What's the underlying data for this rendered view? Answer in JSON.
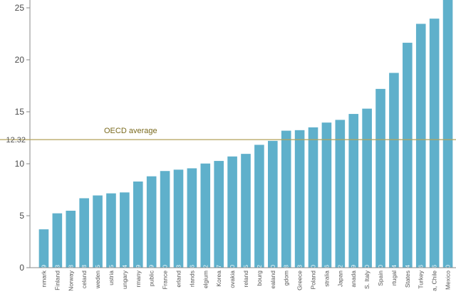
{
  "chart_data": {
    "type": "bar",
    "title": "",
    "xlabel": "",
    "ylabel": "",
    "ylim": [
      0,
      26
    ],
    "yticks": [
      0,
      5,
      10,
      15,
      20,
      25
    ],
    "grid": false,
    "bar_color": "#5fb0cb",
    "reference_line": {
      "label": "OECD average",
      "value": 12.32,
      "value_label": "12.32",
      "color": "#b3a25a"
    },
    "categories": [
      "Denmark",
      "Finland",
      "Norway",
      "Iceland",
      "Sweden",
      "Austria",
      "Hungary",
      "Germany",
      "Czech Republic",
      "France",
      "Switzerland",
      "Netherlands",
      "Belgium",
      "Korea",
      "Slovakia",
      "Ireland",
      "Luxembourg",
      "New Zealand",
      "United Kingdom",
      "Greece",
      "Poland",
      "Australia",
      "Japan",
      "Canada",
      "U.S. Italy",
      "Spain",
      "Portugal",
      "United States",
      "Turkey",
      "Chile",
      "Mexico"
    ],
    "visible_category_text": [
      "nmark",
      "Finland",
      "Norway",
      "celand",
      "weden",
      "ustria",
      "ungary",
      "rmany",
      "public",
      "France",
      "erland",
      "rlands",
      "elgium",
      "Korea",
      "ovakia",
      "reland",
      "bourg",
      "ealand",
      "gdom",
      "Greece",
      "Poland",
      "stralia",
      "Japan",
      "anada",
      "S. Italy",
      "Spain",
      "rtugal",
      "States",
      "Turkey",
      "a, Chile",
      "Mexico"
    ],
    "values": [
      3.69,
      5.23,
      5.48,
      6.68,
      6.95,
      7.15,
      7.24,
      8.29,
      8.79,
      9.3,
      9.43,
      9.56,
      10.02,
      10.27,
      10.7,
      10.95,
      11.82,
      12.2,
      13.18,
      13.23,
      13.5,
      13.96,
      14.22,
      14.79,
      15.3,
      17.2,
      18.74,
      21.64,
      23.46,
      23.96,
      25.8
    ],
    "value_labels": [
      "3.69",
      "5.23",
      "5.48",
      "6.68",
      "6.95",
      "7.15",
      "7.24",
      "8.29",
      "8.79",
      "9.30",
      "9.43",
      "9.56",
      "10.02",
      "10.27",
      "10.70",
      "10.95",
      "11.82",
      "12.20",
      "13.18",
      "13.23",
      "13.50",
      "13.96",
      "14.22",
      "14.79",
      "15.30",
      "17.20",
      "18.74",
      "21.64",
      "23.46",
      "23.96",
      "25.80"
    ]
  }
}
